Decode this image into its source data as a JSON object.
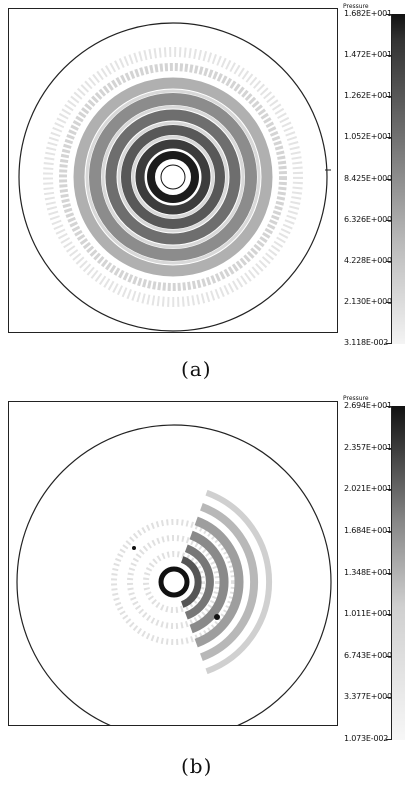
{
  "figure": {
    "panels": [
      {
        "caption": "(a)",
        "legend_title": "Pressure",
        "legend_ticks": [
          "1.682E+001",
          "1.472E+001",
          "1.262E+001",
          "1.052E+001",
          "8.425E+000",
          "6.326E+000",
          "4.228E+000",
          "2.130E+000",
          "3.118E-002"
        ],
        "pattern": "concentric",
        "colors": {
          "ink": "#222222",
          "high": "#111111",
          "low": "#ffffff"
        }
      },
      {
        "caption": "(b)",
        "legend_title": "Pressure",
        "legend_ticks": [
          "2.694E+001",
          "2.357E+001",
          "2.021E+001",
          "1.684E+001",
          "1.348E+001",
          "1.011E+001",
          "6.743E+000",
          "3.377E+000",
          "1.073E-002"
        ],
        "pattern": "directional-right",
        "colors": {
          "ink": "#222222",
          "high": "#111111",
          "low": "#ffffff"
        }
      }
    ]
  }
}
